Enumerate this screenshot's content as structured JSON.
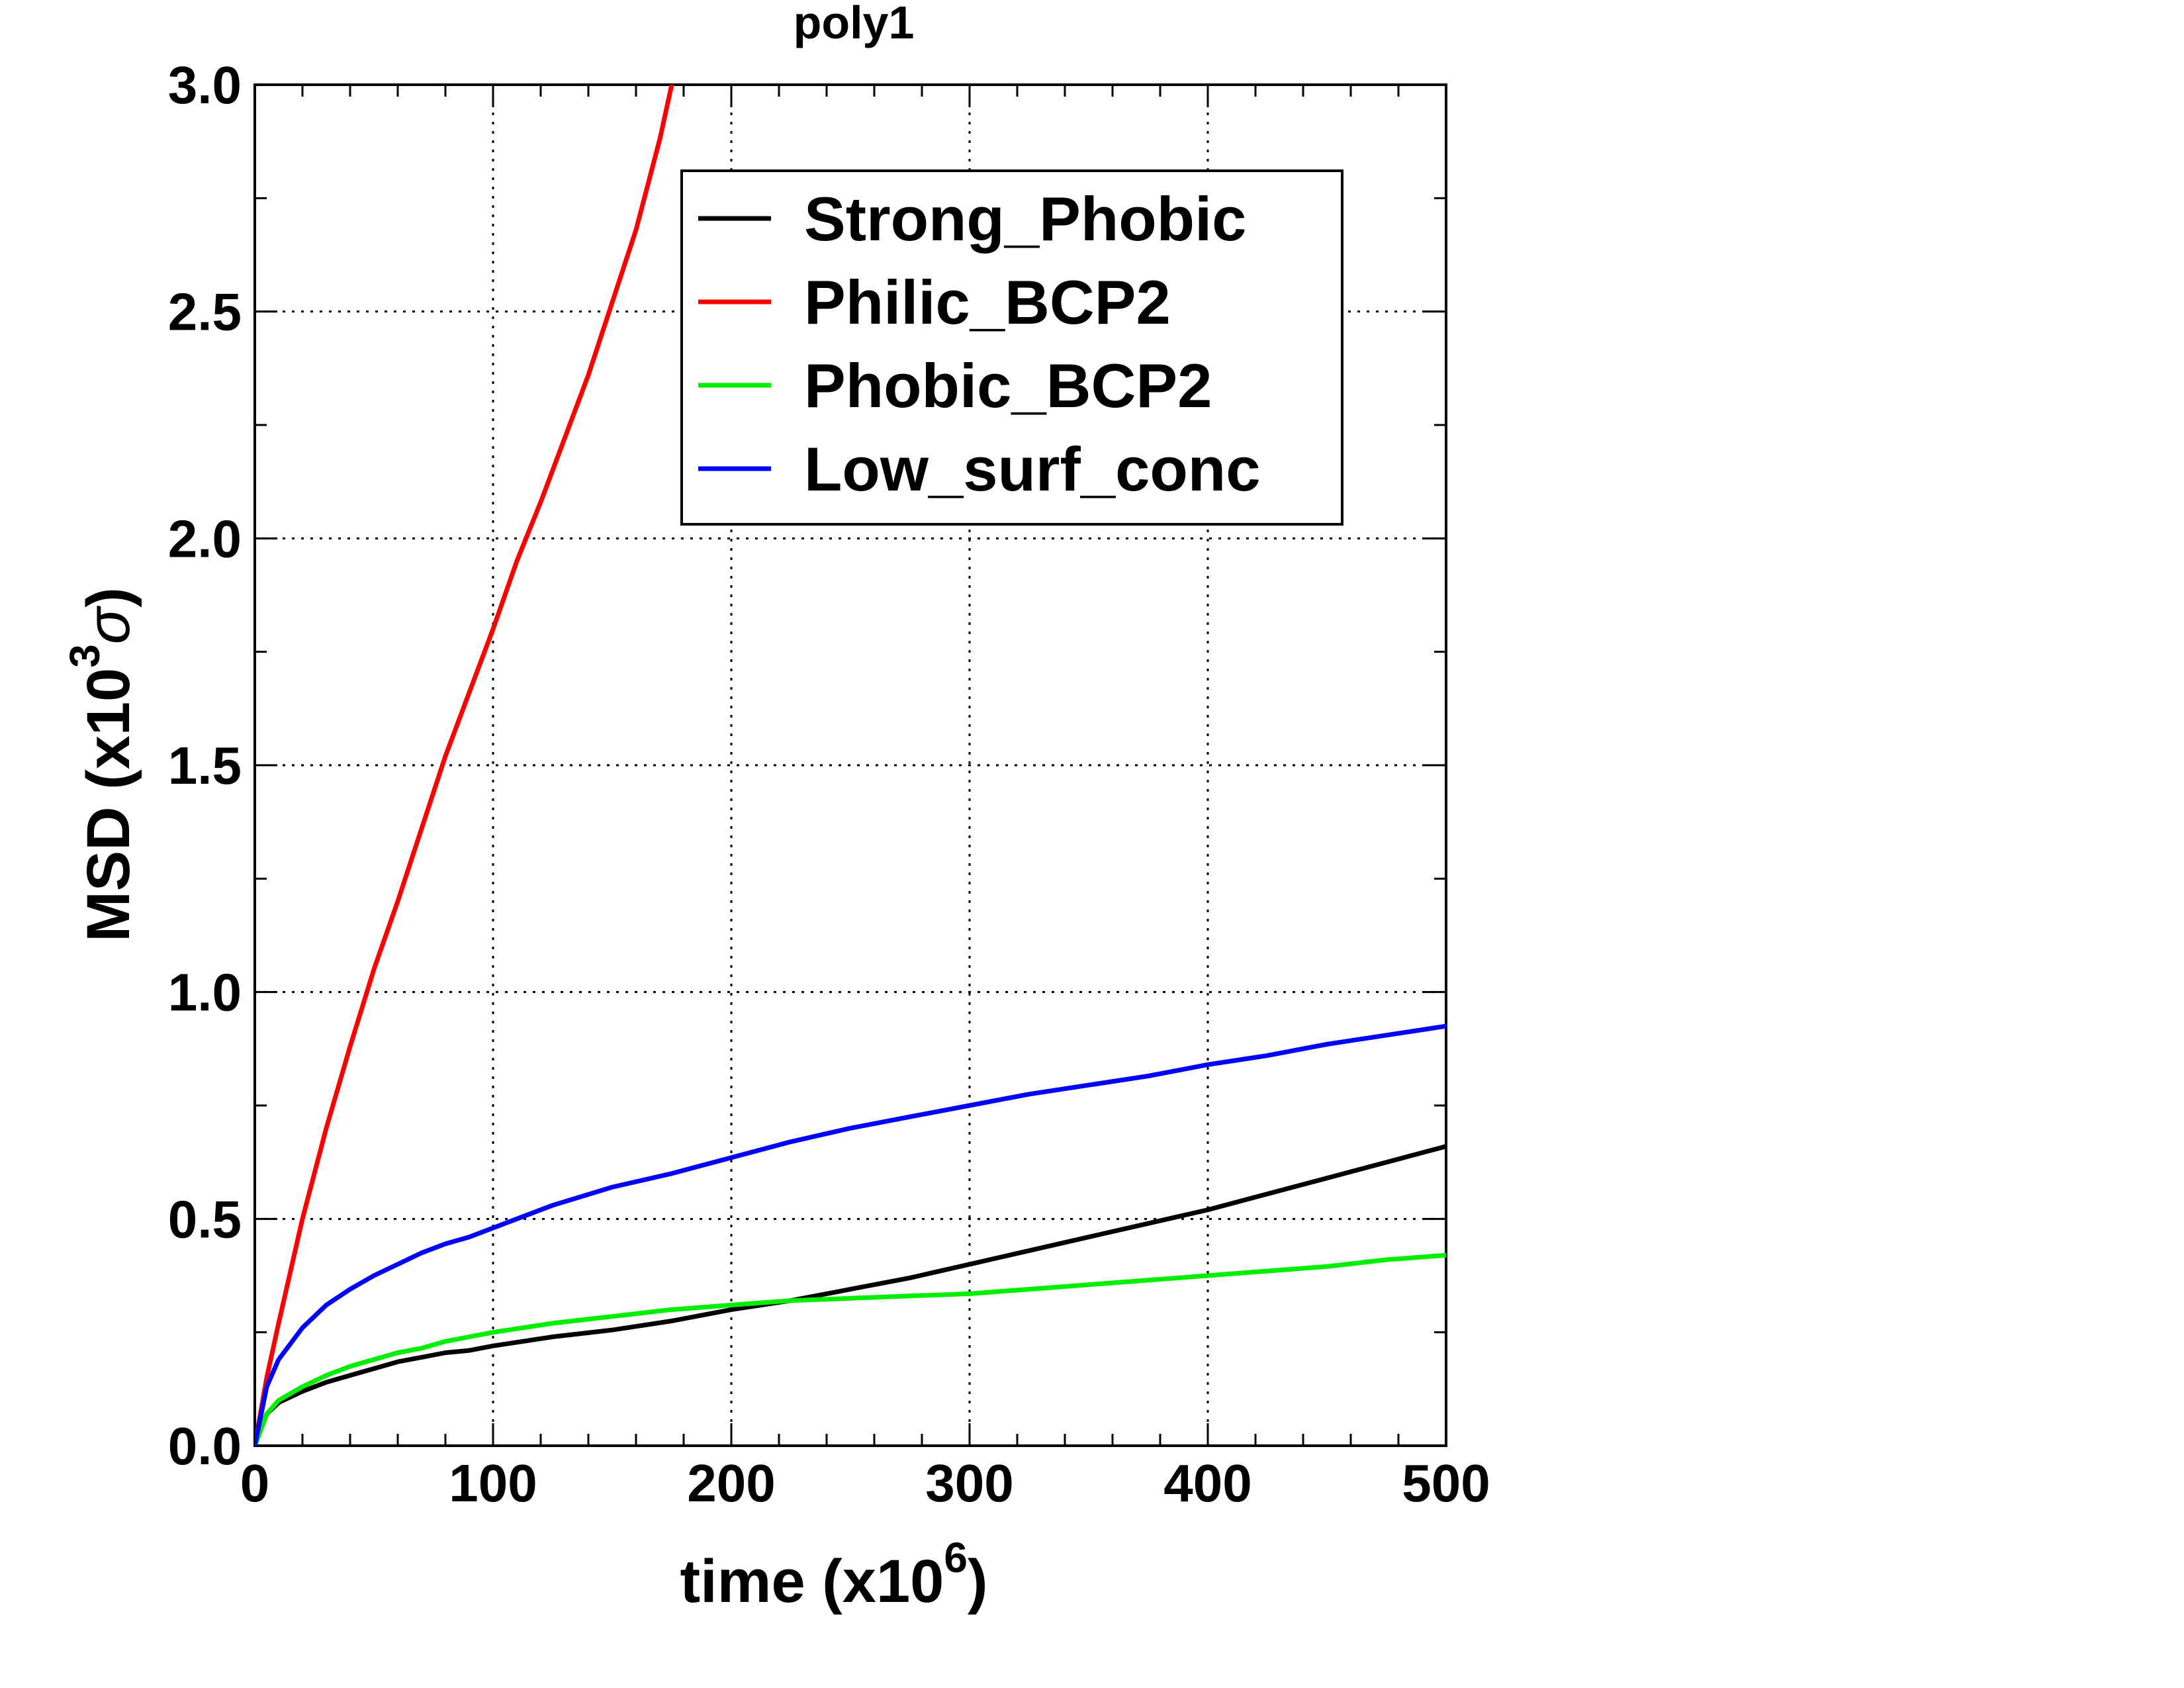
{
  "chart_data": {
    "type": "line",
    "title": "poly1",
    "xlabel": {
      "main": "time (x10",
      "sup": "6",
      "close": ")"
    },
    "ylabel": {
      "main": "MSD (x10",
      "sup": "3",
      "sigma": "σ",
      "close": ")"
    },
    "xlim": [
      0,
      500
    ],
    "ylim": [
      0,
      3.0
    ],
    "grid": true,
    "legend_position": "top-right",
    "x_ticks": [
      0,
      100,
      200,
      300,
      400,
      500
    ],
    "x_tick_labels": [
      "0",
      "100",
      "200",
      "300",
      "400",
      "500"
    ],
    "y_ticks": [
      0.0,
      0.5,
      1.0,
      1.5,
      2.0,
      2.5,
      3.0
    ],
    "y_tick_labels": [
      "0.0",
      "0.5",
      "1.0",
      "1.5",
      "2.0",
      "2.5",
      "3.0"
    ],
    "series": [
      {
        "name": "Strong_Phobic",
        "color": "#000000",
        "x": [
          0,
          5,
          10,
          20,
          30,
          40,
          50,
          60,
          70,
          80,
          90,
          100,
          125,
          150,
          175,
          200,
          225,
          250,
          275,
          300,
          325,
          350,
          375,
          400,
          425,
          450,
          475,
          500
        ],
        "y": [
          0,
          0.07,
          0.095,
          0.12,
          0.14,
          0.155,
          0.17,
          0.185,
          0.195,
          0.205,
          0.21,
          0.22,
          0.24,
          0.255,
          0.275,
          0.3,
          0.32,
          0.345,
          0.37,
          0.4,
          0.43,
          0.46,
          0.49,
          0.52,
          0.555,
          0.59,
          0.625,
          0.66
        ]
      },
      {
        "name": "Philic_BCP2",
        "color": "#ff0000",
        "x": [
          0,
          5,
          10,
          20,
          30,
          40,
          50,
          60,
          70,
          80,
          90,
          100,
          110,
          120,
          130,
          140,
          150,
          160,
          170,
          175
        ],
        "y": [
          0,
          0.15,
          0.27,
          0.5,
          0.7,
          0.88,
          1.05,
          1.2,
          1.36,
          1.52,
          1.66,
          1.8,
          1.95,
          2.08,
          2.22,
          2.36,
          2.52,
          2.68,
          2.88,
          3.0
        ]
      },
      {
        "name": "Phobic_BCP2",
        "color": "#00ee00",
        "x": [
          0,
          5,
          10,
          20,
          30,
          40,
          50,
          60,
          70,
          80,
          90,
          100,
          125,
          150,
          175,
          200,
          225,
          250,
          275,
          300,
          325,
          350,
          375,
          400,
          425,
          450,
          475,
          500
        ],
        "y": [
          0,
          0.07,
          0.1,
          0.13,
          0.155,
          0.175,
          0.19,
          0.205,
          0.215,
          0.23,
          0.24,
          0.25,
          0.27,
          0.285,
          0.3,
          0.31,
          0.32,
          0.325,
          0.33,
          0.335,
          0.345,
          0.355,
          0.365,
          0.375,
          0.385,
          0.395,
          0.41,
          0.42
        ]
      },
      {
        "name": "Low_surf_conc",
        "color": "#0000ff",
        "x": [
          0,
          5,
          10,
          20,
          30,
          40,
          50,
          60,
          70,
          80,
          90,
          100,
          125,
          150,
          175,
          200,
          225,
          250,
          275,
          300,
          325,
          350,
          375,
          400,
          425,
          450,
          475,
          500
        ],
        "y": [
          0,
          0.13,
          0.19,
          0.26,
          0.31,
          0.345,
          0.375,
          0.4,
          0.425,
          0.445,
          0.46,
          0.48,
          0.53,
          0.57,
          0.6,
          0.635,
          0.67,
          0.7,
          0.725,
          0.75,
          0.775,
          0.795,
          0.815,
          0.84,
          0.86,
          0.885,
          0.905,
          0.925
        ]
      }
    ]
  }
}
